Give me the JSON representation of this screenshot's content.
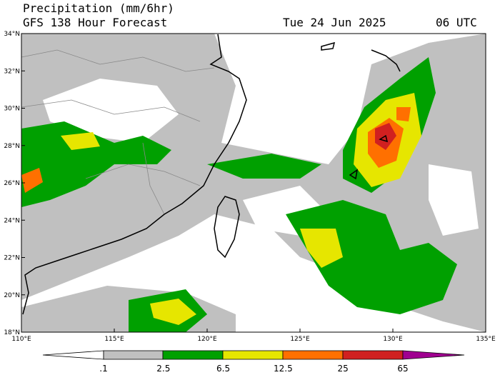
{
  "header": {
    "title": "Precipitation (mm/6hr)",
    "subtitle": "GFS 138 Hour Forecast",
    "date": "Tue 24 Jun 2025",
    "time": "06 UTC"
  },
  "map": {
    "lat_labels": [
      "34°N",
      "32°N",
      "30°N",
      "28°N",
      "26°N",
      "24°N",
      "22°N",
      "20°N",
      "18°N"
    ],
    "lon_labels": [
      "110°E",
      "115°E",
      "120°E",
      "125°E",
      "130°E",
      "135°E"
    ]
  },
  "legend": {
    "labels": [
      ".1",
      "2.5",
      "6.5",
      "12.5",
      "25",
      "65"
    ]
  }
}
